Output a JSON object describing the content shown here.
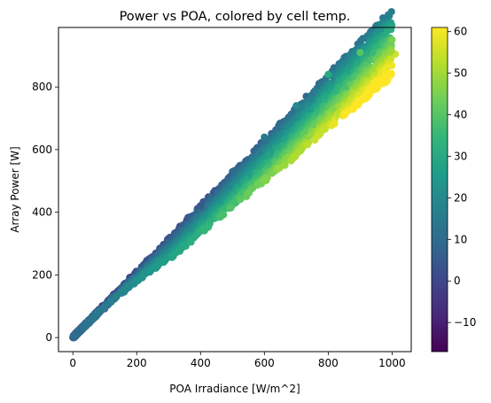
{
  "chart_data": {
    "type": "scatter",
    "title": "Power vs POA, colored by cell temp.",
    "xlabel": "POA Irradiance [W/m^2]",
    "ylabel": "Array Power [W]",
    "xlim": [
      -45,
      1060
    ],
    "ylim": [
      -45,
      990
    ],
    "xticks": [
      0,
      200,
      400,
      600,
      800,
      1000
    ],
    "yticks": [
      0,
      200,
      400,
      600,
      800
    ],
    "colorbar": {
      "label": "",
      "min": -17,
      "max": 61,
      "ticks": [
        -10,
        0,
        10,
        20,
        30,
        40,
        50,
        60
      ],
      "colormap": "viridis"
    },
    "series_description": "points colored by cell temperature",
    "points_sample": [
      {
        "x": 0,
        "y": 0,
        "c": -5
      },
      {
        "x": 50,
        "y": 45,
        "c": -3
      },
      {
        "x": 100,
        "y": 92,
        "c": 0
      },
      {
        "x": 200,
        "y": 190,
        "c": 5
      },
      {
        "x": 300,
        "y": 280,
        "c": 10
      },
      {
        "x": 400,
        "y": 420,
        "c": 5
      },
      {
        "x": 400,
        "y": 370,
        "c": 35
      },
      {
        "x": 500,
        "y": 530,
        "c": 10
      },
      {
        "x": 500,
        "y": 460,
        "c": 45
      },
      {
        "x": 600,
        "y": 640,
        "c": 15
      },
      {
        "x": 600,
        "y": 550,
        "c": 50
      },
      {
        "x": 700,
        "y": 740,
        "c": 20
      },
      {
        "x": 700,
        "y": 640,
        "c": 55
      },
      {
        "x": 800,
        "y": 840,
        "c": 30
      },
      {
        "x": 800,
        "y": 720,
        "c": 58
      },
      {
        "x": 900,
        "y": 910,
        "c": 40
      },
      {
        "x": 900,
        "y": 800,
        "c": 60
      },
      {
        "x": 1000,
        "y": 950,
        "c": 45
      },
      {
        "x": 1010,
        "y": 905,
        "c": 55
      }
    ]
  }
}
